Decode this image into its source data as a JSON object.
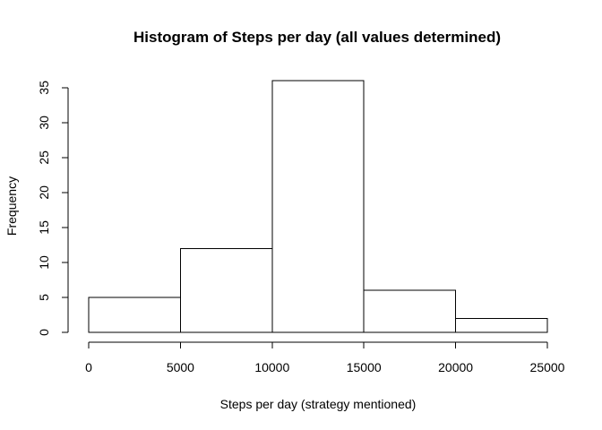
{
  "chart_data": {
    "type": "bar",
    "title": "Histogram of Steps per day (all values determined)",
    "xlabel": "Steps per day (strategy mentioned)",
    "ylabel": "Frequency",
    "bins": [
      {
        "start": 0,
        "end": 5000,
        "count": 5
      },
      {
        "start": 5000,
        "end": 10000,
        "count": 12
      },
      {
        "start": 10000,
        "end": 15000,
        "count": 36
      },
      {
        "start": 15000,
        "end": 20000,
        "count": 6
      },
      {
        "start": 20000,
        "end": 25000,
        "count": 2
      }
    ],
    "x_ticks": [
      "0",
      "5000",
      "10000",
      "15000",
      "20000",
      "25000"
    ],
    "y_ticks": [
      "0",
      "5",
      "10",
      "15",
      "20",
      "25",
      "30",
      "35"
    ],
    "xlim": [
      0,
      25000
    ],
    "ylim": [
      0,
      36
    ],
    "bar_fill": "#ffffff",
    "bar_stroke": "#000000",
    "grid": false,
    "legend": "none"
  }
}
